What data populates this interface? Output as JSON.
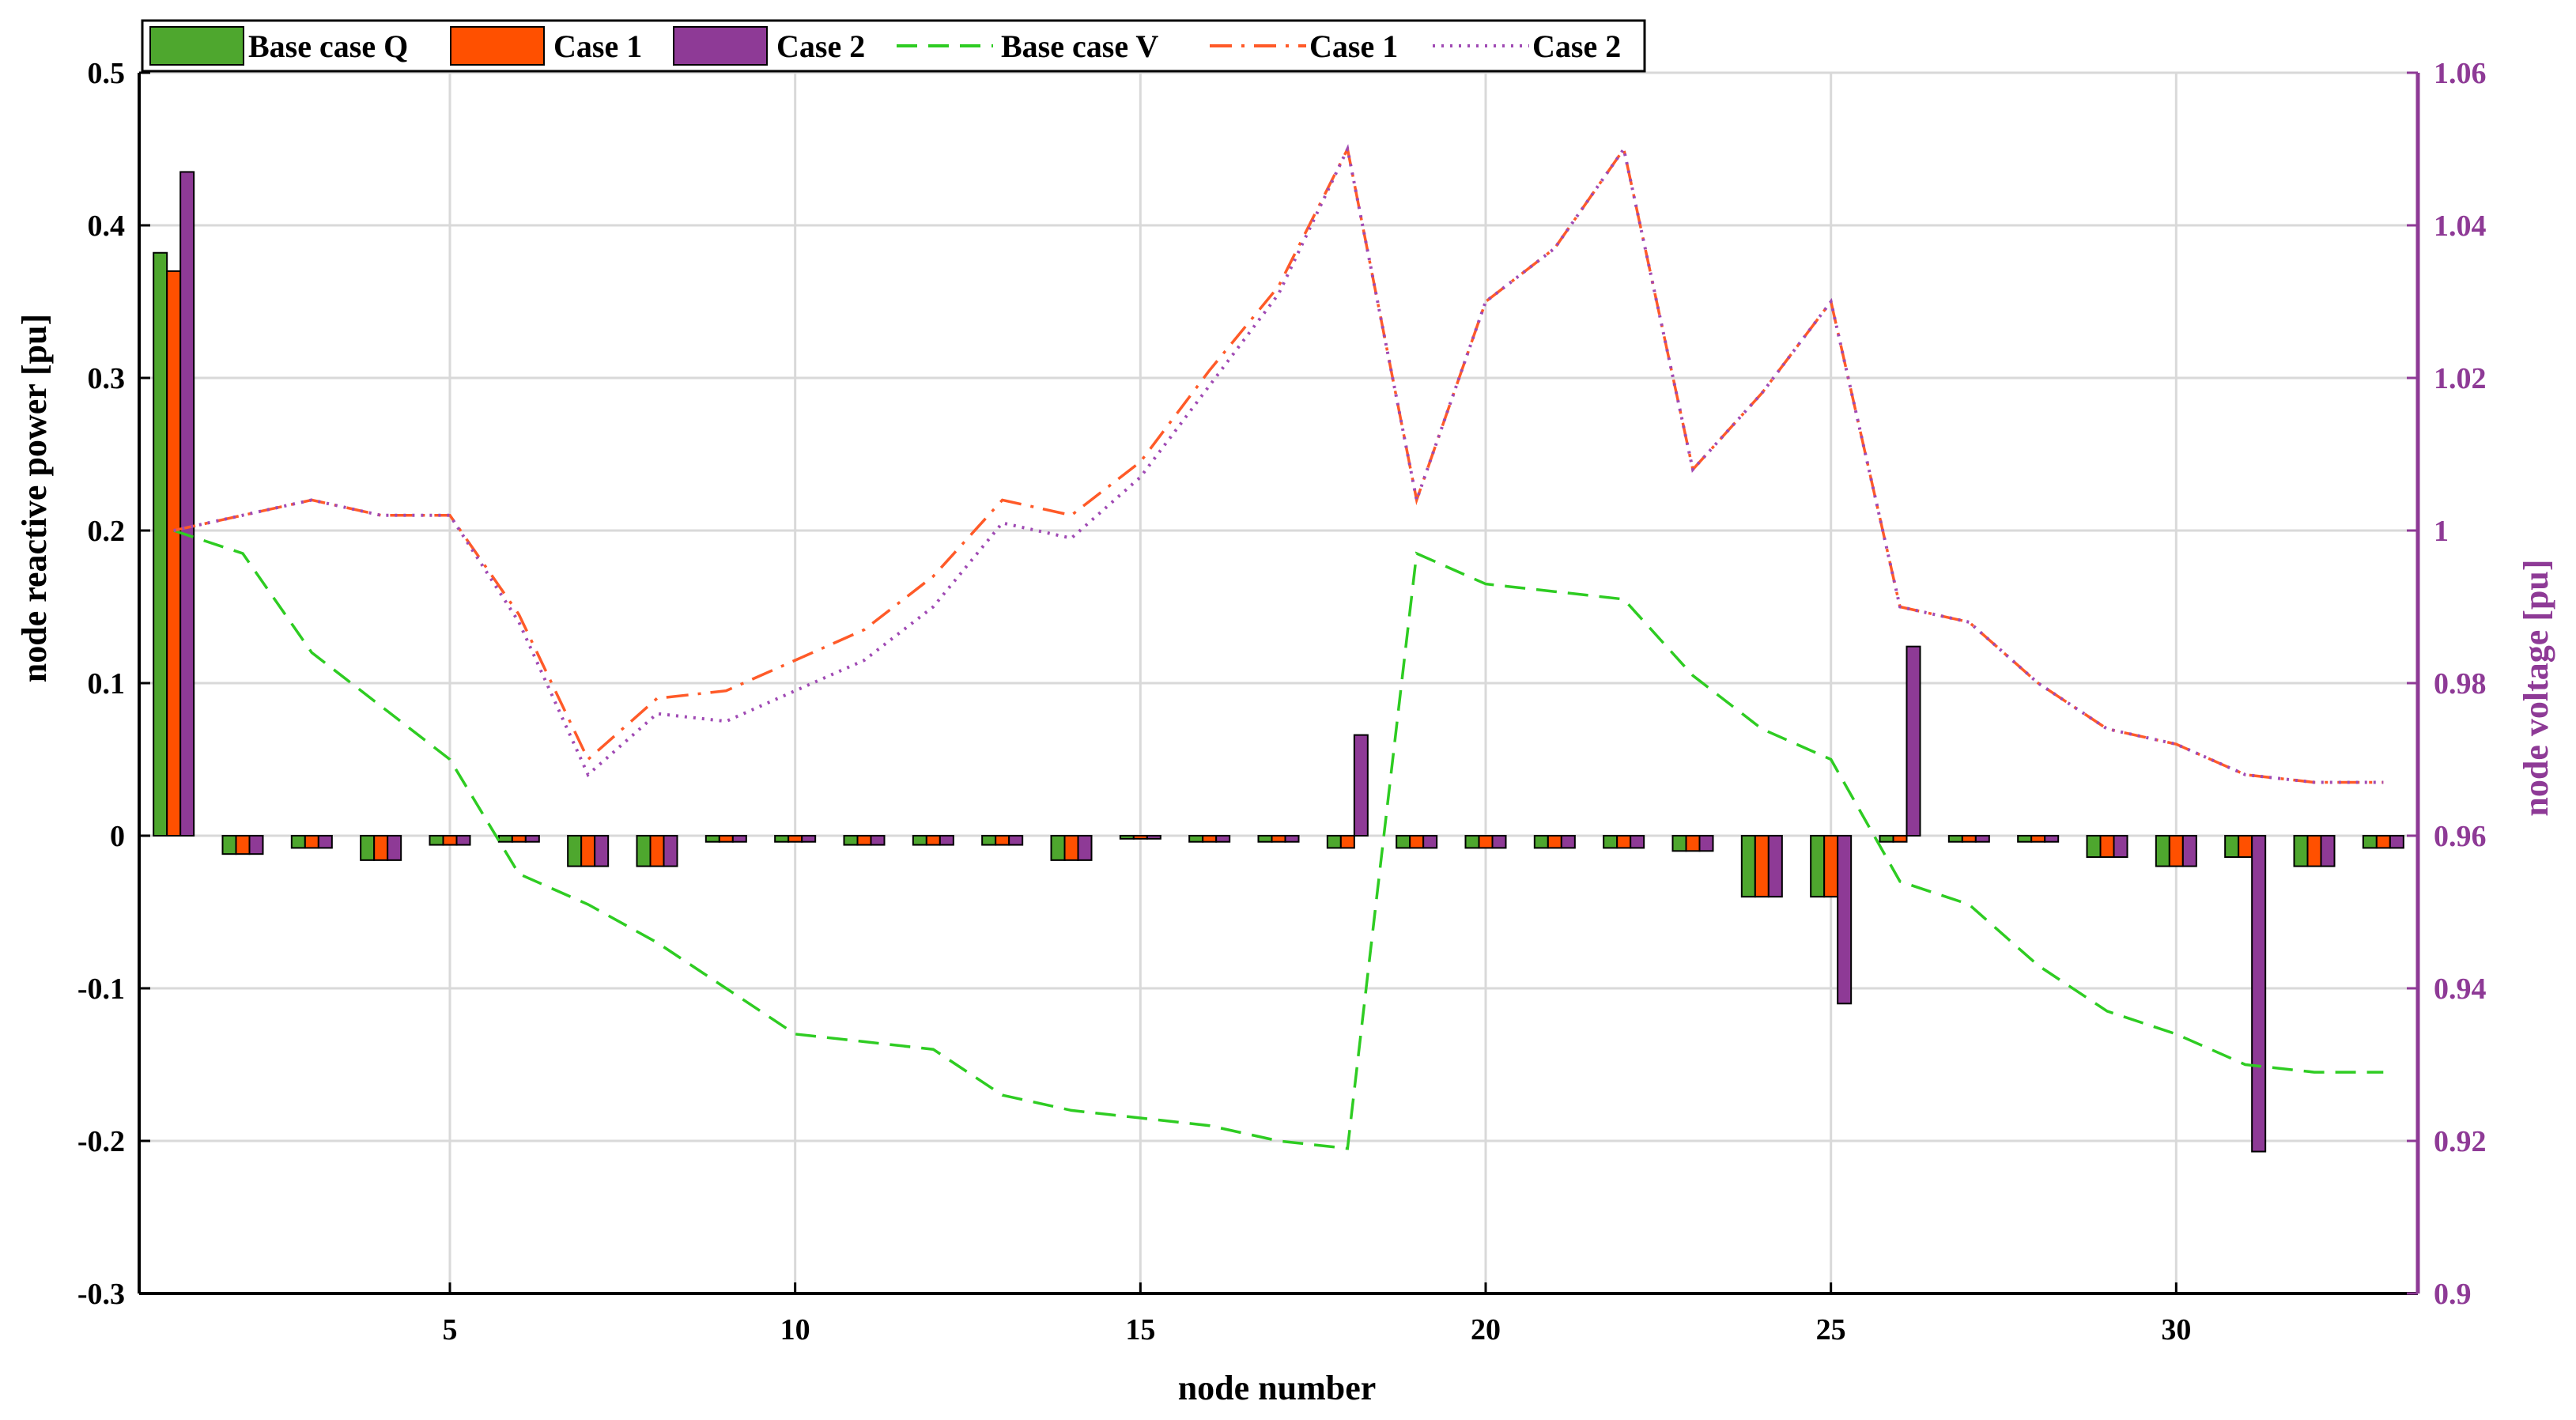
{
  "chart_data": {
    "type": "bar+line",
    "xlabel": "node number",
    "ylabel_left": "node reactive power [pu]",
    "ylabel_right": "node voltage [pu]",
    "xlim": [
      0.5,
      33.5
    ],
    "ylim_left": [
      -0.3,
      0.5
    ],
    "ylim_right": [
      0.9,
      1.06
    ],
    "grid": true,
    "legend_position": "top-left",
    "x_ticks": [
      5,
      10,
      15,
      20,
      25,
      30
    ],
    "x_tick_labels": [
      "5",
      "10",
      "15",
      "20",
      "25",
      "30"
    ],
    "y_left_ticks": [
      -0.3,
      -0.2,
      -0.1,
      0,
      0.1,
      0.2,
      0.3,
      0.4,
      0.5
    ],
    "y_left_tick_labels": [
      "-0.3",
      "-0.2",
      "-0.1",
      "0",
      "0.1",
      "0.2",
      "0.3",
      "0.4",
      "0.5"
    ],
    "y_right_ticks": [
      0.9,
      0.92,
      0.94,
      0.96,
      0.98,
      1.0,
      1.02,
      1.04,
      1.06
    ],
    "y_right_tick_labels": [
      "0.9",
      "0.92",
      "0.94",
      "0.96",
      "0.98",
      "1",
      "1.02",
      "1.04",
      "1.06"
    ],
    "nodes": [
      1,
      2,
      3,
      4,
      5,
      6,
      7,
      8,
      9,
      10,
      11,
      12,
      13,
      14,
      15,
      16,
      17,
      18,
      19,
      20,
      21,
      22,
      23,
      24,
      25,
      26,
      27,
      28,
      29,
      30,
      31,
      32,
      33
    ],
    "bar_series": [
      {
        "name": "Base case Q",
        "color": "#4ea72e",
        "values": [
          0.382,
          -0.012,
          -0.008,
          -0.016,
          -0.006,
          -0.004,
          -0.02,
          -0.02,
          -0.004,
          -0.004,
          -0.006,
          -0.006,
          -0.006,
          -0.016,
          -0.002,
          -0.004,
          -0.004,
          -0.008,
          -0.008,
          -0.008,
          -0.008,
          -0.008,
          -0.01,
          -0.04,
          -0.04,
          -0.004,
          -0.004,
          -0.004,
          -0.014,
          -0.02,
          -0.014,
          -0.02,
          -0.008
        ]
      },
      {
        "name": "Case 1",
        "color": "#ff5000",
        "values": [
          0.37,
          -0.012,
          -0.008,
          -0.016,
          -0.006,
          -0.004,
          -0.02,
          -0.02,
          -0.004,
          -0.004,
          -0.006,
          -0.006,
          -0.006,
          -0.016,
          -0.002,
          -0.004,
          -0.004,
          -0.008,
          -0.008,
          -0.008,
          -0.008,
          -0.008,
          -0.01,
          -0.04,
          -0.04,
          -0.004,
          -0.004,
          -0.004,
          -0.014,
          -0.02,
          -0.014,
          -0.02,
          -0.008
        ]
      },
      {
        "name": "Case 2",
        "color": "#8e3a96",
        "values": [
          0.435,
          -0.012,
          -0.008,
          -0.016,
          -0.006,
          -0.004,
          -0.02,
          -0.02,
          -0.004,
          -0.004,
          -0.006,
          -0.006,
          -0.006,
          -0.016,
          -0.002,
          -0.004,
          -0.004,
          0.066,
          -0.008,
          -0.008,
          -0.008,
          -0.008,
          -0.01,
          -0.04,
          -0.11,
          0.124,
          -0.004,
          -0.004,
          -0.014,
          -0.02,
          -0.207,
          -0.02,
          -0.008
        ]
      }
    ],
    "line_series": [
      {
        "name": "Base case V",
        "color": "#2ecc22",
        "style": "dashed",
        "values": [
          1.0,
          0.997,
          0.984,
          0.977,
          0.97,
          0.955,
          0.951,
          0.946,
          0.94,
          0.934,
          0.933,
          0.932,
          0.926,
          0.924,
          0.923,
          0.922,
          0.92,
          0.919,
          0.997,
          0.993,
          0.992,
          0.991,
          0.981,
          0.974,
          0.97,
          0.954,
          0.951,
          0.943,
          0.937,
          0.934,
          0.93,
          0.929,
          0.929
        ]
      },
      {
        "name": "Case 1",
        "color": "#ff5a28",
        "style": "dashdot",
        "values": [
          1.0,
          1.002,
          1.004,
          1.002,
          1.002,
          0.989,
          0.97,
          0.978,
          0.979,
          0.983,
          0.987,
          0.994,
          1.004,
          1.002,
          1.009,
          1.021,
          1.032,
          1.05,
          1.004,
          1.03,
          1.037,
          1.05,
          1.008,
          1.018,
          1.03,
          0.99,
          0.988,
          0.98,
          0.974,
          0.972,
          0.968,
          0.967,
          0.967
        ]
      },
      {
        "name": "Case 2",
        "color": "#a04ab4",
        "style": "dotted",
        "values": [
          1.0,
          1.002,
          1.004,
          1.002,
          1.002,
          0.988,
          0.968,
          0.976,
          0.975,
          0.979,
          0.983,
          0.99,
          1.001,
          0.999,
          1.007,
          1.019,
          1.031,
          1.05,
          1.004,
          1.03,
          1.037,
          1.05,
          1.008,
          1.018,
          1.03,
          0.99,
          0.988,
          0.98,
          0.974,
          0.972,
          0.968,
          0.967,
          0.967
        ]
      }
    ]
  }
}
